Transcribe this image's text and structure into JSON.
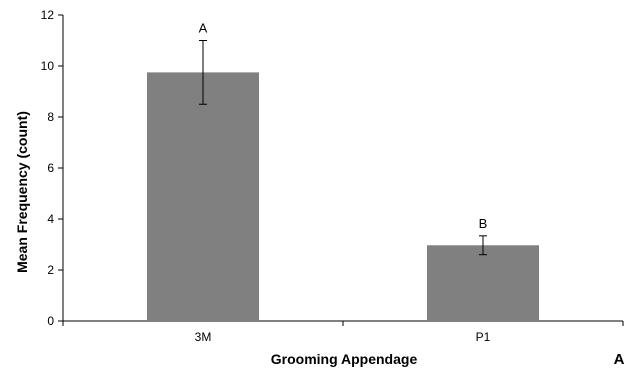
{
  "chart_data": {
    "type": "bar",
    "categories": [
      "3M",
      "P1"
    ],
    "values": [
      9.75,
      2.97
    ],
    "error": [
      1.25,
      0.37
    ],
    "data_labels": [
      "A",
      "B"
    ],
    "xlabel": "Grooming Appendage",
    "ylabel": "Mean Frequency (count)",
    "ylim": [
      0,
      12
    ],
    "yticks": [
      0,
      2,
      4,
      6,
      8,
      10,
      12
    ],
    "panel_label": "A",
    "bar_color": "#808080",
    "grid": false
  }
}
